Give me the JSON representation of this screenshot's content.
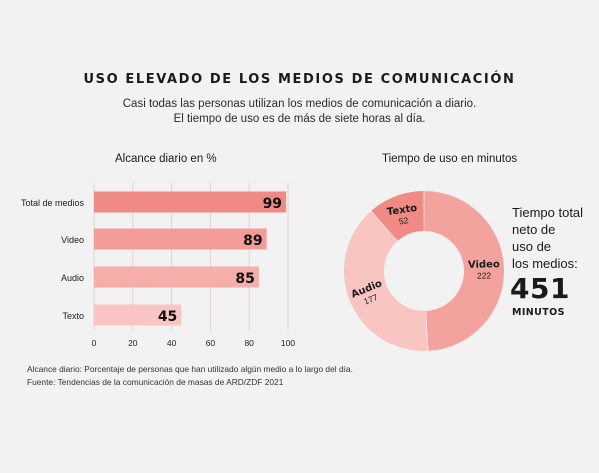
{
  "header": {
    "title": "USO ELEVADO DE LOS MEDIOS DE COMUNICACIÓN",
    "subtitle_line1": "Casi todas las personas utilizan los medios de comunicación a diario.",
    "subtitle_line2": "El tiempo de uso es de más de siete horas al día."
  },
  "chart_data": [
    {
      "type": "bar",
      "orientation": "horizontal",
      "title": "Alcance diario en %",
      "categories": [
        "Total de medios",
        "Video",
        "Audio",
        "Texto"
      ],
      "values": [
        99,
        89,
        85,
        45
      ],
      "xlim": [
        0,
        100
      ],
      "xticks": [
        0,
        20,
        40,
        60,
        80,
        100
      ],
      "grid": "vertical",
      "colors": [
        "#f08a84",
        "#f39c97",
        "#f5aeaa",
        "#f8c5c2"
      ]
    },
    {
      "type": "pie",
      "variant": "donut",
      "title": "Tiempo de uso en minutos",
      "labels": [
        "Video",
        "Audio",
        "Texto"
      ],
      "values": [
        222,
        177,
        52
      ],
      "colors": [
        "#f4a29d",
        "#f8c5c2",
        "#f08a84"
      ]
    }
  ],
  "summary": {
    "label_line1": "Tiempo total",
    "label_line2": "neto de",
    "label_line3": "uso de",
    "label_line4": "los medios:",
    "total": "451",
    "unit": "MINUTOS"
  },
  "footnote": {
    "line1": "Alcance diario: Porcentaje de personas que han utilizado algún medio a lo largo del día.",
    "line2": "Fuente: Tendencias de la comunicación de masas de ARD/ZDF 2021"
  }
}
